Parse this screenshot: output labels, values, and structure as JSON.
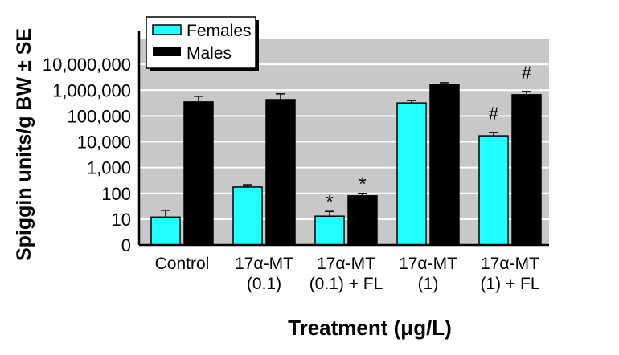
{
  "chart_data": {
    "type": "bar",
    "title": "",
    "xlabel": "Treatment (μg/L)",
    "ylabel": "Spiggin units/g BW ± SE",
    "yscale": "log",
    "ylim": [
      1,
      100000000
    ],
    "grid": true,
    "legend_position": "top-left",
    "ytick_values": [
      1,
      10,
      100,
      1000,
      10000,
      100000,
      1000000,
      10000000
    ],
    "ytick_labels": [
      "0",
      "10",
      "100",
      "1,000",
      "10,000",
      "100,000",
      "1,000,000",
      "10,000,000"
    ],
    "categories": [
      [
        "Control"
      ],
      [
        "17α-MT",
        "(0.1)"
      ],
      [
        "17α-MT",
        "(0.1) + FL"
      ],
      [
        "17α-MT",
        "(1)"
      ],
      [
        "17α-MT",
        "(1) + FL"
      ]
    ],
    "series": [
      {
        "name": "Females",
        "color": "#22ffff",
        "values": [
          12,
          175,
          13,
          320000,
          17000
        ],
        "error_upper": [
          22,
          215,
          20,
          400000,
          23000
        ],
        "annotations": [
          "",
          "",
          "*",
          "",
          "#"
        ]
      },
      {
        "name": "Males",
        "color": "#000000",
        "values": [
          350000,
          430000,
          80,
          1600000,
          670000
        ],
        "error_upper": [
          580000,
          720000,
          100,
          1950000,
          890000
        ],
        "annotations": [
          "",
          "",
          "*",
          "",
          "#"
        ]
      }
    ],
    "colors": {
      "plot_background": "#c8c8c8",
      "gridline": "#ffffff"
    }
  }
}
